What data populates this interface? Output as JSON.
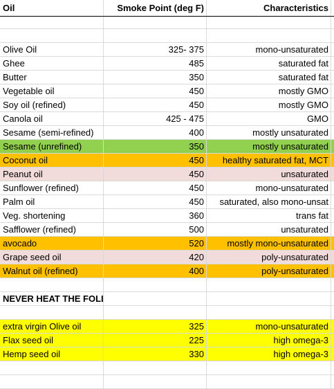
{
  "header": {
    "col1": "Oil",
    "col2": "Smoke Point (deg F)",
    "col3": "Characteristics"
  },
  "rows": [
    {
      "oil": "",
      "smoke": "",
      "char": "",
      "fill": ""
    },
    {
      "oil": "Olive Oil",
      "smoke": "325- 375",
      "char": "mono-unsaturated",
      "fill": ""
    },
    {
      "oil": "Ghee",
      "smoke": "485",
      "char": "saturated fat",
      "fill": ""
    },
    {
      "oil": "Butter",
      "smoke": "350",
      "char": "saturated fat",
      "fill": ""
    },
    {
      "oil": "Vegetable oil",
      "smoke": "450",
      "char": "mostly GMO",
      "fill": ""
    },
    {
      "oil": "Soy oil (refined)",
      "smoke": "450",
      "char": "mostly GMO",
      "fill": ""
    },
    {
      "oil": "Canola oil",
      "smoke": "425 - 475",
      "char": "GMO",
      "fill": ""
    },
    {
      "oil": "Sesame (semi-refined)",
      "smoke": "400",
      "char": "mostly unsaturated",
      "fill": ""
    },
    {
      "oil": "Sesame (unrefined)",
      "smoke": "350",
      "char": "mostly unsaturated",
      "fill": "green"
    },
    {
      "oil": "Coconut oil",
      "smoke": "450",
      "char": "healthy saturated fat, MCT",
      "fill": "orange"
    },
    {
      "oil": "Peanut oil",
      "smoke": "450",
      "char": "unsaturated",
      "fill": "pink"
    },
    {
      "oil": "Sunflower (refined)",
      "smoke": "450",
      "char": "mono-unsaturated",
      "fill": ""
    },
    {
      "oil": "Palm oil",
      "smoke": "450",
      "char": "saturated, also mono-unsat",
      "fill": ""
    },
    {
      "oil": "Veg. shortening",
      "smoke": "360",
      "char": "trans fat",
      "fill": ""
    },
    {
      "oil": "Safflower (refined)",
      "smoke": "500",
      "char": "unsaturated",
      "fill": ""
    },
    {
      "oil": "avocado",
      "smoke": "520",
      "char": "mostly mono-unsaturated",
      "fill": "orange"
    },
    {
      "oil": "Grape seed oil",
      "smoke": "420",
      "char": "poly-unsaturated",
      "fill": "pink"
    },
    {
      "oil": "Walnut oil (refined)",
      "smoke": "400",
      "char": "poly-unsaturated",
      "fill": "orange"
    },
    {
      "oil": "",
      "smoke": "",
      "char": "",
      "fill": ""
    },
    {
      "oil": "NEVER HEAT THE FOLLOWING",
      "smoke": "",
      "char": "",
      "fill": "",
      "bold": true
    },
    {
      "oil": "",
      "smoke": "",
      "char": "",
      "fill": ""
    },
    {
      "oil": "extra virgin Olive oil",
      "smoke": "325",
      "char": "mono-unsaturated",
      "fill": "yellow"
    },
    {
      "oil": "Flax seed oil",
      "smoke": "225",
      "char": "high omega-3",
      "fill": "yellow"
    },
    {
      "oil": "Hemp seed oil",
      "smoke": "330",
      "char": "high omega-3",
      "fill": "yellow"
    },
    {
      "oil": "",
      "smoke": "",
      "char": "",
      "fill": ""
    },
    {
      "oil": "",
      "smoke": "",
      "char": "",
      "fill": ""
    }
  ],
  "colors": {
    "green": "#92d050",
    "orange": "#ffc000",
    "pink": "#f2dcdb",
    "yellow": "#ffff00",
    "grid": "#d9d9d9"
  }
}
